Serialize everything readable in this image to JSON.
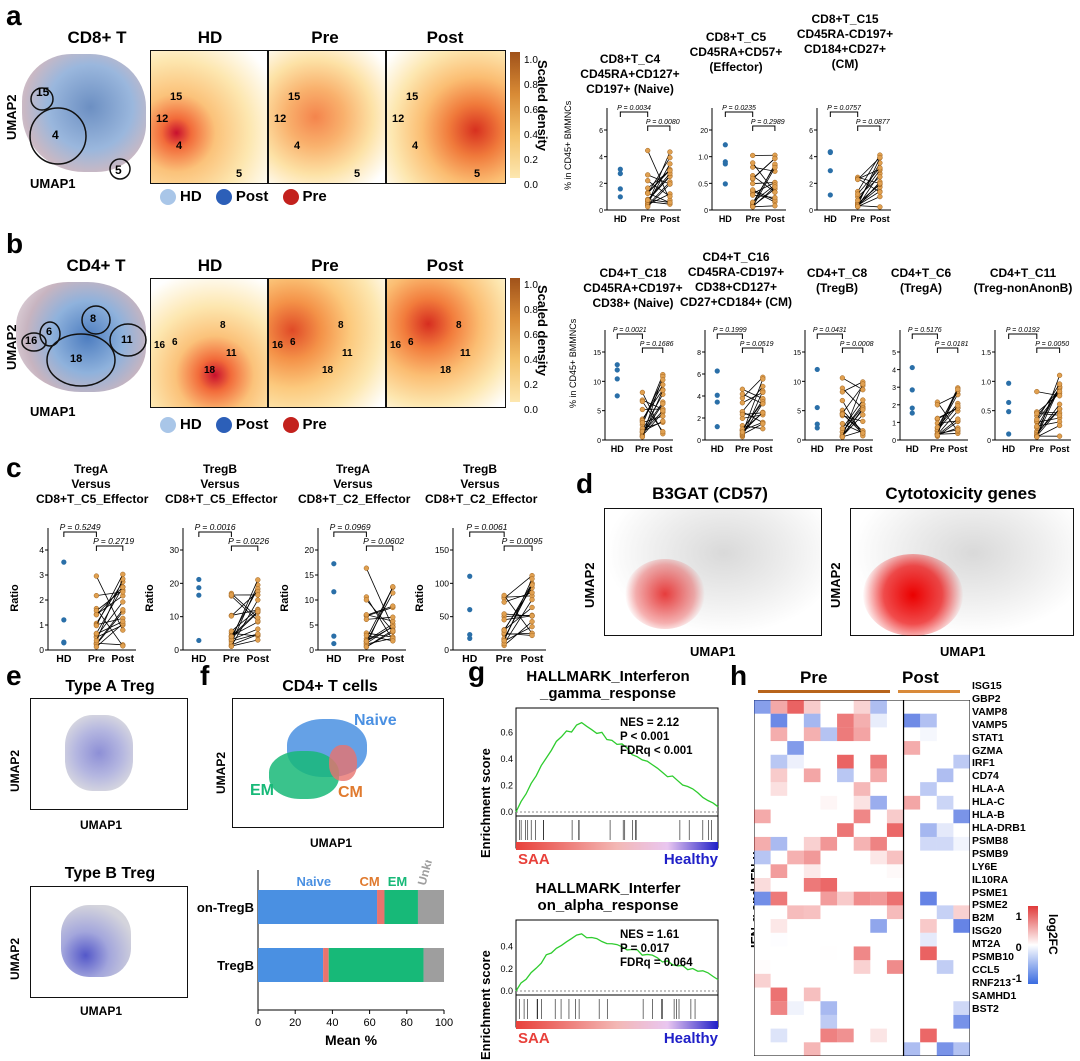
{
  "panels": {
    "a": "a",
    "b": "b",
    "c": "c",
    "d": "d",
    "e": "e",
    "f": "f",
    "g": "g",
    "h": "h"
  },
  "a": {
    "titles": [
      "CD8+ T",
      "HD",
      "Pre",
      "Post"
    ],
    "umap2": "UMAP2",
    "umap1": "UMAP1",
    "cluster_labels": [
      "15",
      "12",
      "4",
      "5"
    ],
    "legend": [
      "HD",
      "Post",
      "Pre"
    ],
    "colorbar": {
      "label": "Scaled density",
      "ticks": [
        "1.0",
        "0.8",
        "0.6",
        "0.4",
        "0.2",
        "0.0"
      ]
    },
    "dot_titles": [
      [
        "CD8+T_C4",
        "CD45RA+CD127+",
        "CD197+ (Naive)"
      ],
      [
        "CD8+T_C5",
        "CD45RA+CD57+",
        "(Effector)"
      ],
      [
        "CD8+T_C15",
        "CD45RA-CD197+",
        "CD184+CD27+",
        "(CM)"
      ]
    ],
    "ylabel": "% in CD45+ BMMNCs",
    "xticks": [
      "HD",
      "Pre",
      "Post"
    ],
    "pvals": [
      [
        "P = 0.0034",
        "P = 0.0080"
      ],
      [
        "P = 0.0235",
        "P = 0.2989"
      ],
      [
        "P = 0.0757",
        "P = 0.0877"
      ]
    ],
    "yticks": [
      [
        "0",
        "2",
        "4",
        "6"
      ],
      [
        "0",
        "0.5",
        "1.0",
        "20"
      ],
      [
        "0",
        "2",
        "4",
        "6"
      ]
    ]
  },
  "b": {
    "titles": [
      "CD4+ T",
      "HD",
      "Pre",
      "Post"
    ],
    "cluster_labels": [
      "16",
      "6",
      "8",
      "11",
      "18"
    ],
    "legend": [
      "HD",
      "Post",
      "Pre"
    ],
    "colorbar": {
      "label": "Scaled density",
      "ticks": [
        "1.0",
        "0.8",
        "0.6",
        "0.4",
        "0.2",
        "0.0"
      ]
    },
    "dot_titles": [
      [
        "CD4+T_C18",
        "CD45RA+CD197+",
        "CD38+ (Naive)"
      ],
      [
        "CD4+T_C16",
        "CD45RA-CD197+",
        "CD38+CD127+",
        "CD27+CD184+ (CM)"
      ],
      [
        "CD4+T_C8",
        "(TregB)"
      ],
      [
        "CD4+T_C6",
        "(TregA)"
      ],
      [
        "CD4+T_C11",
        "(Treg-nonAnonB)"
      ]
    ],
    "ylabel": "% in CD45+ BMMNCs",
    "pvals": [
      [
        "P = 0.0021",
        "P = 0.1686"
      ],
      [
        "P = 0.1999",
        "P = 0.0519"
      ],
      [
        "P = 0.0431",
        "P = 0.0008"
      ],
      [
        "P = 0.5176",
        "P = 0.0181"
      ],
      [
        "P = 0.0192",
        "P = 0.0050"
      ]
    ],
    "yticks": [
      [
        "0",
        "5",
        "10",
        "15"
      ],
      [
        "0",
        "2",
        "4",
        "6",
        "8"
      ],
      [
        "0",
        "5",
        "10",
        "15"
      ],
      [
        "0",
        "1",
        "2",
        "3",
        "4",
        "5"
      ],
      [
        "0",
        "0.5",
        "1.0",
        "1.5"
      ]
    ]
  },
  "c": {
    "titles": [
      [
        "TregA",
        "Versus",
        "CD8+T_C5_Effector"
      ],
      [
        "TregB",
        "Versus",
        "CD8+T_C5_Effector"
      ],
      [
        "TregA",
        "Versus",
        "CD8+T_C2_Effector"
      ],
      [
        "TregB",
        "Versus",
        "CD8+T_C2_Effector"
      ]
    ],
    "ylabel": "Ratio",
    "pvals": [
      [
        "P = 0.5249",
        "P = 0.2719"
      ],
      [
        "P = 0.0016",
        "P = 0.0226"
      ],
      [
        "P = 0.0969",
        "P = 0.0602"
      ],
      [
        "P = 0.0061",
        "P = 0.0095"
      ]
    ],
    "yticks": [
      [
        "0",
        "1",
        "2",
        "3",
        "4"
      ],
      [
        "0",
        "10",
        "20",
        "30"
      ],
      [
        "0",
        "5",
        "10",
        "15",
        "20"
      ],
      [
        "0",
        "50",
        "100",
        "150"
      ]
    ]
  },
  "d": {
    "titles": [
      "B3GAT (CD57)",
      "Cytotoxicity genes"
    ],
    "umap1": "UMAP1",
    "umap2": "UMAP2"
  },
  "e": {
    "titles": [
      "Type A Treg",
      "Type B Treg"
    ]
  },
  "f": {
    "title": "CD4+ T cells",
    "cluster_labels": [
      "Naive",
      "EM",
      "CM"
    ],
    "bar_header": [
      "Naive",
      "CM",
      "EM",
      "Unknown"
    ],
    "rows": [
      {
        "label": "Non-TregB",
        "naive": 64,
        "cm": 4,
        "em": 18,
        "unknown": 14
      },
      {
        "label": "TregB",
        "naive": 35,
        "cm": 3,
        "em": 51,
        "unknown": 11
      }
    ],
    "xticks": [
      "0",
      "20",
      "40",
      "60",
      "80",
      "100"
    ],
    "xlabel": "Mean %",
    "colors": {
      "naive": "#4a90e2",
      "cm": "#e8736e",
      "em": "#17b978",
      "unknown": "#9e9e9e"
    }
  },
  "g": {
    "plots": [
      {
        "title": [
          "HALLMARK_Interferon",
          "_gamma_response"
        ],
        "stats": [
          "NES = 2.12",
          "P < 0.001",
          "FDRq < 0.001"
        ]
      },
      {
        "title": [
          "HALLMARK_Interfer",
          "on_alpha_response"
        ],
        "stats": [
          "NES = 1.61",
          "P = 0.017",
          "FDRq = 0.064"
        ]
      }
    ],
    "ylabel": "Enrichment score",
    "yticks": [
      [
        "0.0",
        "0.2",
        "0.4",
        "0.6"
      ],
      [
        "0.0",
        "0.2",
        "0.4"
      ]
    ],
    "left_label": "SAA",
    "right_label": "Healthy"
  },
  "h": {
    "groups": [
      "Pre",
      "Post"
    ],
    "ylabel": "IFN-α and IFN-γ",
    "genes": [
      "ISG15",
      "GBP2",
      "VAMP8",
      "VAMP5",
      "STAT1",
      "GZMA",
      "IRF1",
      "CD74",
      "HLA-A",
      "HLA-C",
      "HLA-B",
      "HLA-DRB1",
      "PSMB8",
      "PSMB9",
      "LY6E",
      "IL10RA",
      "PSME1",
      "PSME2",
      "B2M",
      "ISG20",
      "MT2A",
      "PSMB10",
      "CCL5",
      "RNF213",
      "SAMHD1",
      "BST2"
    ],
    "colorbar": {
      "label": "log2FC",
      "ticks": [
        "1",
        "0",
        "-1"
      ]
    }
  }
}
